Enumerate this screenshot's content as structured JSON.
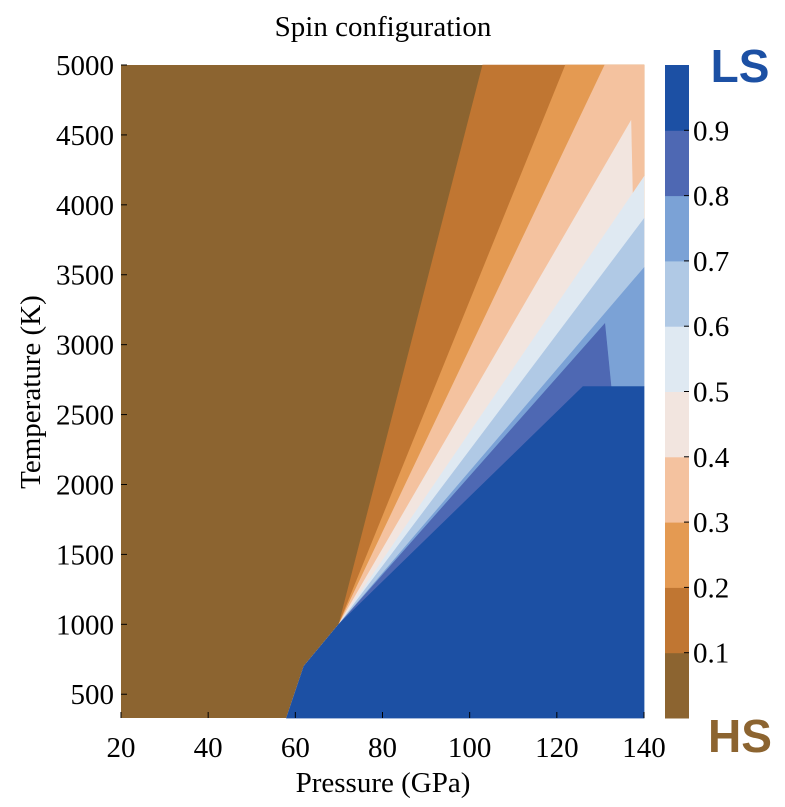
{
  "chart_data": {
    "type": "heatmap",
    "subtype": "filled-contour",
    "title": "Spin configuration",
    "xlabel": "Pressure (GPa)",
    "ylabel": "Temperature (K)",
    "xlim": [
      20,
      140
    ],
    "ylim": [
      330,
      5000
    ],
    "x_ticks": [
      "20",
      "40",
      "60",
      "80",
      "100",
      "120",
      "140"
    ],
    "y_ticks": [
      "500",
      "1000",
      "1500",
      "2000",
      "2500",
      "3000",
      "3500",
      "4000",
      "4500",
      "5000"
    ],
    "colorbar": {
      "ticks": [
        "0.1",
        "0.2",
        "0.3",
        "0.4",
        "0.5",
        "0.6",
        "0.7",
        "0.8",
        "0.9"
      ],
      "top_label": "LS",
      "bottom_label": "HS",
      "top_label_color": "#1c50a4",
      "bottom_label_color": "#8c6430",
      "levels": [
        0,
        0.1,
        0.2,
        0.3,
        0.4,
        0.5,
        0.6,
        0.7,
        0.8,
        0.9,
        1.0
      ],
      "colors": [
        "#8c6430",
        "#c07632",
        "#e49a52",
        "#f4c29f",
        "#f2e5df",
        "#dfe9f2",
        "#b0c9e5",
        "#7ba2d6",
        "#4e68b3",
        "#1c50a4"
      ]
    },
    "boundaries": [
      {
        "level": 0.1,
        "points": [
          [
            58,
            330
          ],
          [
            62,
            700
          ],
          [
            70,
            1000
          ],
          [
            103,
            5000
          ]
        ]
      },
      {
        "level": 0.2,
        "points": [
          [
            58,
            330
          ],
          [
            62,
            700
          ],
          [
            70,
            1000
          ],
          [
            122,
            5000
          ]
        ]
      },
      {
        "level": 0.3,
        "points": [
          [
            58,
            330
          ],
          [
            62,
            700
          ],
          [
            70,
            1000
          ],
          [
            131,
            5000
          ]
        ]
      },
      {
        "level": 0.4,
        "points": [
          [
            58,
            330
          ],
          [
            62,
            700
          ],
          [
            70,
            1000
          ],
          [
            137,
            4600
          ]
        ]
      },
      {
        "level": 0.5,
        "points": [
          [
            58,
            330
          ],
          [
            62,
            700
          ],
          [
            70,
            1000
          ],
          [
            140,
            4200
          ]
        ]
      },
      {
        "level": 0.6,
        "points": [
          [
            58,
            330
          ],
          [
            62,
            700
          ],
          [
            70,
            1000
          ],
          [
            140,
            3900
          ]
        ]
      },
      {
        "level": 0.7,
        "points": [
          [
            58,
            330
          ],
          [
            62,
            700
          ],
          [
            70,
            1000
          ],
          [
            140,
            3550
          ]
        ]
      },
      {
        "level": 0.8,
        "points": [
          [
            58,
            330
          ],
          [
            62,
            700
          ],
          [
            70,
            1000
          ],
          [
            131,
            3150
          ]
        ]
      },
      {
        "level": 0.9,
        "points": [
          [
            58,
            330
          ],
          [
            62,
            700
          ],
          [
            70,
            1000
          ],
          [
            126,
            2700
          ],
          [
            140,
            2700
          ]
        ]
      }
    ]
  }
}
